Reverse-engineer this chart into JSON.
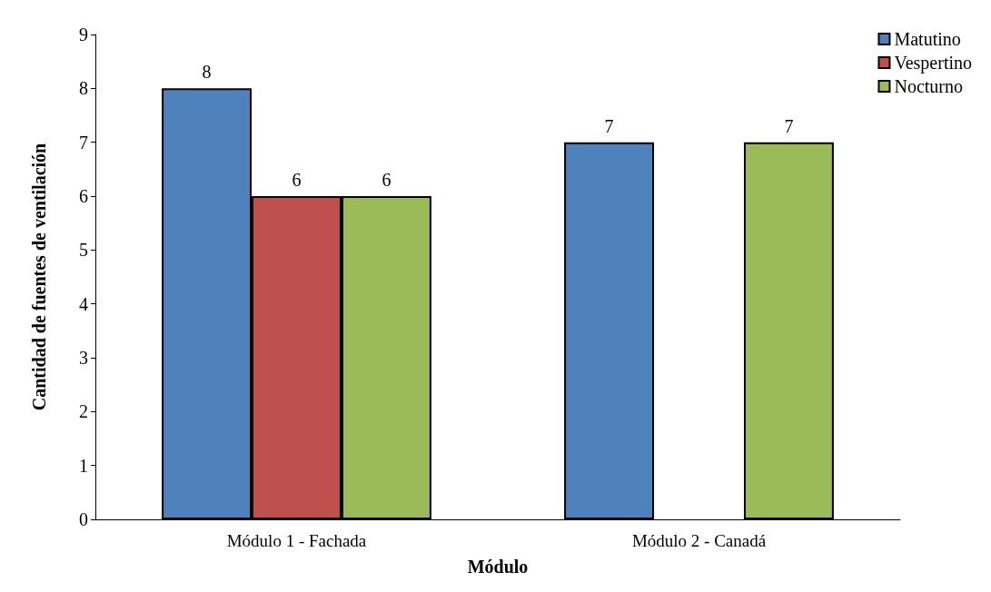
{
  "chart_data": {
    "type": "bar",
    "xlabel": "Módulo",
    "ylabel": "Cantidad de fuentes de ventilación",
    "categories": [
      "Módulo 1 - Fachada",
      "Módulo 2 - Canadá"
    ],
    "series": [
      {
        "name": "Matutino",
        "color": "#4f81bd",
        "values": [
          8,
          7
        ]
      },
      {
        "name": "Vespertino",
        "color": "#c0504d",
        "values": [
          6,
          null
        ]
      },
      {
        "name": "Nocturno",
        "color": "#9bbb59",
        "values": [
          6,
          7
        ]
      }
    ],
    "ylim": [
      0,
      9
    ],
    "yticks": [
      0,
      1,
      2,
      3,
      4,
      5,
      6,
      7,
      8,
      9
    ],
    "grid": false,
    "legend": "top right",
    "data_labels": true
  }
}
